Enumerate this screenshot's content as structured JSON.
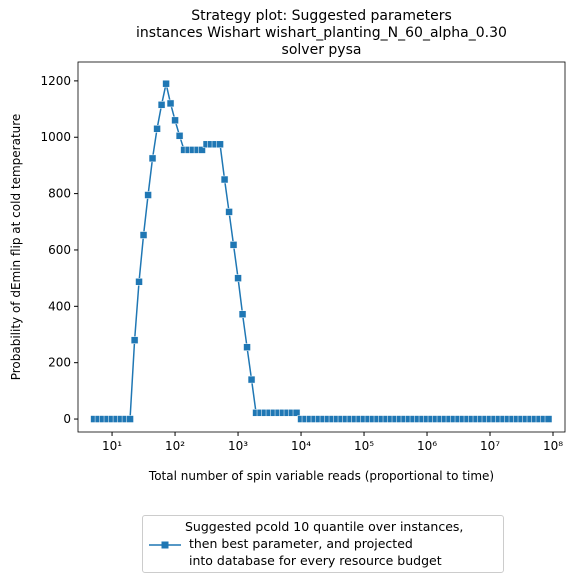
{
  "chart_data": {
    "type": "line",
    "title": "Strategy plot: Suggested parameters\ninstances Wishart wishart_planting_N_60_alpha_0.30\nsolver pysa",
    "xlabel": "Total number of spin variable reads (proportional to time)",
    "ylabel": "Probability of dEmin flip at cold temperature",
    "xscale": "log",
    "xlim": [
      2.88,
      155000000
    ],
    "ylim": [
      -46,
      1267
    ],
    "xticks": [
      {
        "value": 10,
        "label": "10¹"
      },
      {
        "value": 100,
        "label": "10²"
      },
      {
        "value": 1000,
        "label": "10³"
      },
      {
        "value": 10000,
        "label": "10⁴"
      },
      {
        "value": 100000,
        "label": "10⁵"
      },
      {
        "value": 1000000,
        "label": "10⁶"
      },
      {
        "value": 10000000,
        "label": "10⁷"
      },
      {
        "value": 100000000,
        "label": "10⁸"
      }
    ],
    "yticks": [
      0,
      200,
      400,
      600,
      800,
      1000,
      1200
    ],
    "legend": "below",
    "x": [
      5.18,
      6.11,
      7.2,
      8.48,
      10,
      11.8,
      13.9,
      16.4,
      19.3,
      22.8,
      26.8,
      31.6,
      37.3,
      43.9,
      51.8,
      61.1,
      72,
      84.8,
      100,
      118,
      139,
      164,
      193,
      228,
      268,
      316,
      373,
      439,
      518,
      611,
      720,
      848,
      1000,
      1179,
      1389,
      1638,
      1931,
      2276,
      2683,
      3162,
      3728,
      4394,
      5179,
      6105,
      7197,
      8483,
      10000,
      11788,
      13895,
      16379,
      19307,
      22758,
      26827,
      31623,
      37276,
      43940,
      51795,
      61054,
      71969,
      84834,
      100000,
      117877,
      138950,
      163789,
      193070,
      227585,
      268270,
      316228,
      372759,
      439397,
      517947,
      610540,
      719686,
      848343,
      1000000,
      1178769,
      1389495,
      1637894,
      1930698,
      2275846,
      2682696,
      3162278,
      3727594,
      4393971,
      5179475,
      6105402,
      7196857,
      8483429,
      10000000,
      11787686,
      13894955,
      16378937,
      19306977,
      22758459,
      26826958,
      31622777,
      37275937,
      43939706,
      51794747,
      61054023,
      71968567,
      84834290
    ],
    "series": [
      {
        "name": "Suggested pcold 10 quantile over instances,\n then best parameter, and projected\n into database for every resource budget",
        "color": "#1f77b4",
        "values": [
          0,
          0,
          0,
          0,
          0,
          0,
          0,
          0,
          0,
          280,
          487,
          653,
          795,
          925,
          1030,
          1115,
          1190,
          1120,
          1060,
          1005,
          955,
          955,
          955,
          955,
          955,
          975,
          975,
          975,
          975,
          850,
          735,
          618,
          500,
          372,
          255,
          140,
          22,
          22,
          22,
          22,
          22,
          22,
          22,
          22,
          22,
          22,
          0,
          0,
          0,
          0,
          0,
          0,
          0,
          0,
          0,
          0,
          0,
          0,
          0,
          0,
          0,
          0,
          0,
          0,
          0,
          0,
          0,
          0,
          0,
          0,
          0,
          0,
          0,
          0,
          0,
          0,
          0,
          0,
          0,
          0,
          0,
          0,
          0,
          0,
          0,
          0,
          0,
          0,
          0,
          0,
          0,
          0,
          0,
          0,
          0,
          0,
          0,
          0,
          0,
          0,
          0,
          0
        ]
      }
    ]
  }
}
